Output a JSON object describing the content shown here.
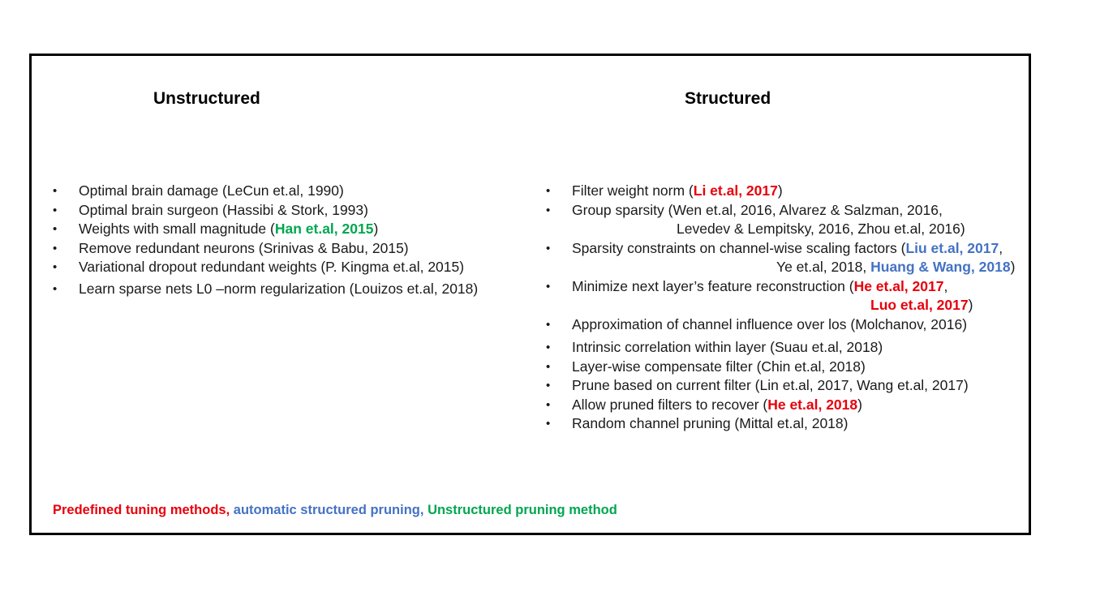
{
  "unstructured": {
    "title": "Unstructured",
    "items": [
      {
        "text": "Optimal brain damage (LeCun et.al, 1990)"
      },
      {
        "text": "Optimal brain surgeon (Hassibi & Stork, 1993)"
      },
      {
        "pre": "Weights with small magnitude (",
        "hl": "Han et.al, 2015",
        "post": ")"
      },
      {
        "text": "Remove redundant neurons (Srinivas & Babu, 2015)"
      },
      {
        "text": "Variational dropout redundant weights (P. Kingma et.al, 2015)"
      },
      {
        "text": "Learn sparse nets L0 –norm regularization (Louizos et.al, 2018)"
      }
    ]
  },
  "structured": {
    "title": "Structured",
    "items": [
      {
        "pre": "Filter weight norm (",
        "hl": "Li et.al, 2017",
        "post": ")"
      },
      {
        "line1": "Group sparsity (Wen et.al, 2016, Alvarez & Salzman, 2016,",
        "line2": "Levedev & Lempitsky, 2016, Zhou et.al, 2016)"
      },
      {
        "pre": "Sparsity constraints on channel-wise scaling factors (",
        "hl": "Liu et.al, 2017",
        "mid": ",",
        "pre2": "Ye et.al, 2018, ",
        "hl2": "Huang & Wang, 2018",
        "post2": ")"
      },
      {
        "pre": "Minimize next layer’s feature reconstruction (",
        "hl": "He et.al, 2017",
        "mid": ",",
        "hl2": "Luo et.al, 2017",
        "post2": ")"
      },
      {
        "text": "Approximation of channel influence over los (Molchanov, 2016)"
      },
      {
        "text": "Intrinsic correlation within layer (Suau et.al, 2018)"
      },
      {
        "text": "Layer-wise compensate filter (Chin et.al, 2018)"
      },
      {
        "text": "Prune based on current filter (Lin et.al, 2017, Wang et.al, 2017)"
      },
      {
        "pre": "Allow pruned filters to recover (",
        "hl": "He et.al, 2018",
        "post": ")"
      },
      {
        "text": "Random channel pruning (Mittal et.al, 2018)"
      }
    ]
  },
  "legend": {
    "predefined": "Predefined tuning methods,",
    "automatic": "automatic structured pruning,",
    "unstructured": "Unstructured pruning method"
  },
  "colors": {
    "red": "#e8000b",
    "blue": "#4472c4",
    "green": "#00a650",
    "border": "#000000"
  }
}
